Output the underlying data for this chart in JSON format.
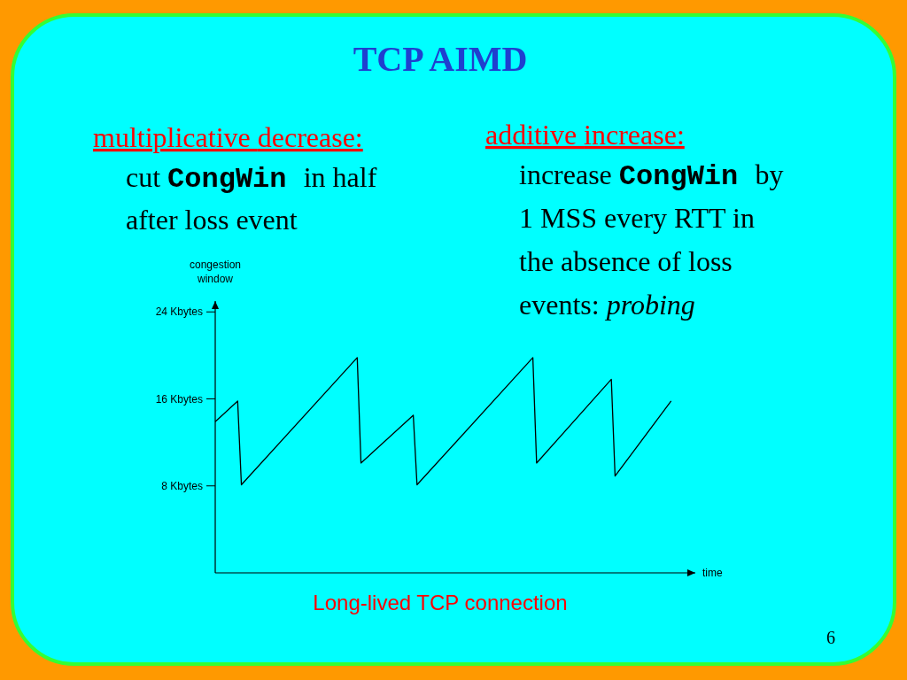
{
  "chart_data": {
    "type": "line",
    "title": "TCP AIMD",
    "ylabel": "congestion window",
    "xlabel": "time",
    "annotations": [
      "multiplicative decrease:",
      "cut CongWin in half",
      "after loss event",
      "additive increase:",
      "increase  CongWin by",
      "1 MSS every RTT in",
      "the absence of loss",
      "events: probing",
      "Long-lived TCP connection",
      "6"
    ],
    "categories": [
      null,
      null,
      null,
      null,
      null,
      null,
      null,
      null,
      null,
      null,
      null,
      null,
      null,
      null,
      null,
      null,
      null,
      null,
      null,
      null,
      null,
      null,
      null,
      null,
      null,
      null,
      null,
      null,
      null,
      null,
      null,
      null,
      null,
      null,
      null,
      null,
      null,
      null,
      null,
      null,
      null,
      null,
      null,
      null,
      null,
      null,
      null,
      null,
      null,
      null,
      null,
      null,
      null,
      null,
      null,
      null,
      null,
      null,
      null,
      null,
      null,
      null,
      null,
      null,
      null,
      null,
      null,
      null,
      null,
      null,
      null,
      null,
      null,
      null,
      null,
      null,
      null,
      null,
      null,
      null,
      null,
      null,
      null,
      null,
      null,
      null,
      null,
      null,
      null,
      null,
      null,
      null,
      null,
      null,
      null,
      null,
      null,
      null,
      null,
      null,
      null,
      null,
      null,
      null,
      null,
      null,
      null,
      null,
      null,
      null,
      null,
      null,
      null,
      null,
      null,
      null,
      null,
      null,
      null,
      null,
      null,
      null,
      null,
      null,
      null,
      null,
      null,
      null,
      null
    ],
    "series": [
      {
        "color": "#000000",
        "values": [
          13.9,
          null,
          null,
          null,
          null,
          null,
          15.8,
          8.1,
          null,
          null,
          null,
          null,
          null,
          null,
          null,
          null,
          null,
          null,
          null,
          null,
          null,
          null,
          null,
          null,
          null,
          null,
          null,
          null,
          null,
          null,
          null,
          null,
          null,
          null,
          null,
          null,
          null,
          null,
          19.8,
          10.1,
          null,
          null,
          null,
          null,
          null,
          null,
          null,
          null,
          null,
          null,
          null,
          null,
          null,
          14.5,
          8.1,
          null,
          null,
          null,
          null,
          null,
          null,
          null,
          null,
          null,
          null,
          null,
          null,
          null,
          null,
          null,
          null,
          null,
          null,
          null,
          null,
          null,
          null,
          null,
          null,
          null,
          null,
          null,
          null,
          null,
          null,
          19.8,
          10.1,
          null,
          null,
          null,
          null,
          null,
          null,
          null,
          null,
          null,
          null,
          null,
          null,
          null,
          null,
          null,
          null,
          null,
          null,
          null,
          17.8,
          8.9,
          null,
          null,
          null,
          null,
          null,
          null,
          null,
          null,
          null,
          null,
          null,
          null,
          null,
          null,
          15.8,
          null,
          null,
          null,
          null,
          null,
          null
        ]
      }
    ],
    "ylim": [
      0,
      25
    ],
    "yticks": [
      {
        "value": 8,
        "label": "8 Kbytes"
      },
      {
        "value": 16,
        "label": "16 Kbytes"
      },
      {
        "value": 24,
        "label": "24 Kbytes"
      }
    ],
    "grid": false,
    "marker": "none",
    "line_style": "solid"
  }
}
